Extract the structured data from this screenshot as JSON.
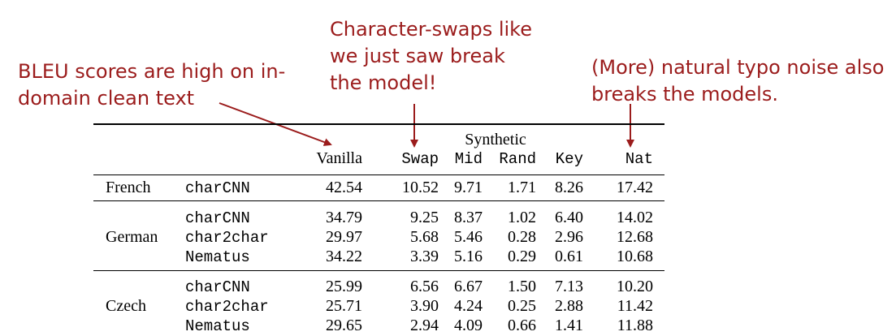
{
  "annotations": {
    "bleu": [
      "BLEU scores are high on in-",
      "domain clean text"
    ],
    "swap": [
      "Character-swaps like",
      "we just saw break",
      "the model!"
    ],
    "nat": [
      "(More) natural typo noise also",
      "breaks the models."
    ]
  },
  "table": {
    "group_header": "Synthetic",
    "columns": [
      "Vanilla",
      "Swap",
      "Mid",
      "Rand",
      "Key",
      "Nat"
    ],
    "rows": [
      {
        "language": "French",
        "model": "charCNN",
        "values": [
          "42.54",
          "10.52",
          "9.71",
          "1.71",
          "8.26",
          "17.42"
        ]
      },
      {
        "language": "",
        "model": "charCNN",
        "values": [
          "34.79",
          "9.25",
          "8.37",
          "1.02",
          "6.40",
          "14.02"
        ]
      },
      {
        "language": "German",
        "model": "char2char",
        "values": [
          "29.97",
          "5.68",
          "5.46",
          "0.28",
          "2.96",
          "12.68"
        ]
      },
      {
        "language": "",
        "model": "Nematus",
        "values": [
          "34.22",
          "3.39",
          "5.16",
          "0.29",
          "0.61",
          "10.68"
        ]
      },
      {
        "language": "",
        "model": "charCNN",
        "values": [
          "25.99",
          "6.56",
          "6.67",
          "1.50",
          "7.13",
          "10.20"
        ]
      },
      {
        "language": "Czech",
        "model": "char2char",
        "values": [
          "25.71",
          "3.90",
          "4.24",
          "0.25",
          "2.88",
          "11.42"
        ]
      },
      {
        "language": "",
        "model": "Nematus",
        "values": [
          "29.65",
          "2.94",
          "4.09",
          "0.66",
          "1.41",
          "11.88"
        ]
      }
    ]
  },
  "colors": {
    "annotation": "#9b1c1c",
    "text": "#000000"
  }
}
